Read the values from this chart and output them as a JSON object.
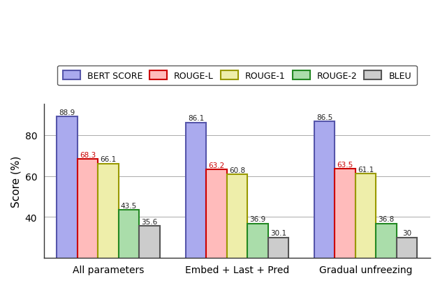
{
  "categories": [
    "All parameters",
    "Embed + Last + Pred",
    "Gradual unfreezing"
  ],
  "metrics": [
    "BERT SCORE",
    "ROUGE-L",
    "ROUGE-1",
    "ROUGE-2",
    "BLEU"
  ],
  "values": [
    [
      88.9,
      68.3,
      66.1,
      43.5,
      35.6
    ],
    [
      86.1,
      63.2,
      60.8,
      36.9,
      30.1
    ],
    [
      86.5,
      63.5,
      61.1,
      36.8,
      30.0
    ]
  ],
  "colors": [
    "#aaaaee",
    "#ffbbbb",
    "#eeeeaa",
    "#aaddaa",
    "#cccccc"
  ],
  "bar_edge_colors": [
    "#5555aa",
    "#cc0000",
    "#999900",
    "#228822",
    "#555555"
  ],
  "ylabel": "Score (%)",
  "ylim": [
    20,
    95
  ],
  "yticks": [
    40,
    60,
    80
  ],
  "label_color_rouge": "#cc0000",
  "label_color_default": "#222222",
  "legend_labels": [
    "BERT SCORE",
    "ROUGE-L",
    "ROUGE-1",
    "ROUGE-2",
    "BLEU"
  ],
  "bar_width": 0.16,
  "group_centers": [
    0.0,
    1.0,
    2.0
  ],
  "figure_width": 6.4,
  "figure_height": 4.1,
  "dpi": 100
}
